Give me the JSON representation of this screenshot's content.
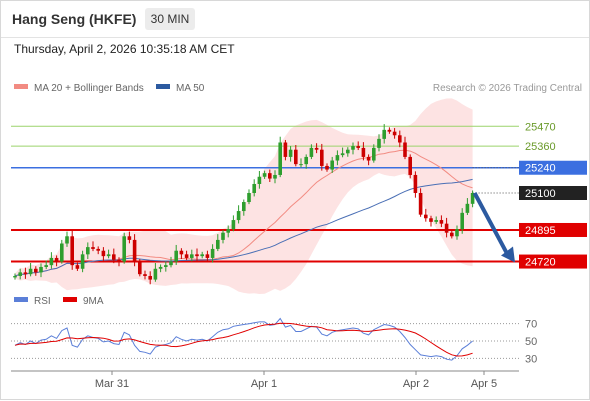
{
  "header": {
    "title": "Hang Seng (HKFE)",
    "interval": "30 MIN",
    "timestamp": "Thursday, April 2, 2026 10:35:18 AM CET"
  },
  "legend": {
    "ma20": {
      "label": "MA 20 + Bollinger Bands",
      "color": "#f28b82"
    },
    "ma50": {
      "label": "MA 50",
      "color": "#2c5aa0"
    },
    "rsi": {
      "label": "RSI",
      "color": "#5b7fd8"
    },
    "rsi_ma": {
      "label": "9MA",
      "color": "#e00000"
    }
  },
  "copyright": "Research © 2026 Trading Central",
  "colors": {
    "up": "#2e9e2e",
    "down": "#cc0000",
    "band": "#fde3e3",
    "arrow": "#2c5aa0",
    "resistance": "#9bd36b",
    "support": "#e00000",
    "pivot": "#3b6fe0"
  },
  "chart_data": [
    {
      "type": "candlestick",
      "ylim": [
        24590,
        25610
      ],
      "x_ticks": [
        "Mar 31",
        "Apr 1",
        "Apr 2",
        "Apr 5"
      ],
      "levels": [
        {
          "label": "25470",
          "value": 25470,
          "kind": "resistance"
        },
        {
          "label": "25360",
          "value": 25360,
          "kind": "resistance"
        },
        {
          "label": "25240",
          "value": 25240,
          "kind": "pivot"
        },
        {
          "label": "25100",
          "value": 25100,
          "kind": "last"
        },
        {
          "label": "24895",
          "value": 24895,
          "kind": "support"
        },
        {
          "label": "24720",
          "value": 24720,
          "kind": "support"
        }
      ],
      "forecast": {
        "from": 25100,
        "to": 24720
      },
      "closes": [
        24640,
        24660,
        24650,
        24680,
        24660,
        24690,
        24700,
        24740,
        24720,
        24820,
        24860,
        24700,
        24680,
        24760,
        24800,
        24790,
        24780,
        24750,
        24760,
        24730,
        24720,
        24860,
        24840,
        24720,
        24650,
        24640,
        24620,
        24680,
        24690,
        24700,
        24720,
        24780,
        24760,
        24740,
        24760,
        24750,
        24760,
        24740,
        24790,
        24840,
        24880,
        24900,
        24950,
        25000,
        25050,
        25100,
        25150,
        25190,
        25210,
        25180,
        25200,
        25380,
        25300,
        25340,
        25260,
        25260,
        25300,
        25350,
        25340,
        25250,
        25230,
        25280,
        25310,
        25320,
        25340,
        25360,
        25350,
        25300,
        25280,
        25350,
        25400,
        25450,
        25440,
        25420,
        25380,
        25300,
        25200,
        25100,
        24980,
        24960,
        24940,
        24950,
        24930,
        24880,
        24860,
        24900,
        24990,
        25040,
        25100
      ]
    },
    {
      "type": "line",
      "name": "RSI",
      "ylim": [
        20,
        80
      ],
      "y_ticks": [
        70,
        50,
        30
      ],
      "x_ticks": [
        "Mar 31",
        "Apr 1",
        "Apr 2",
        "Apr 5"
      ],
      "rsi": [
        45,
        48,
        46,
        50,
        47,
        51,
        52,
        56,
        53,
        62,
        65,
        45,
        43,
        52,
        56,
        54,
        53,
        49,
        50,
        47,
        46,
        60,
        57,
        45,
        38,
        37,
        35,
        43,
        45,
        46,
        48,
        55,
        52,
        50,
        52,
        51,
        52,
        50,
        55,
        60,
        63,
        64,
        67,
        68,
        69,
        70,
        71,
        72,
        72,
        68,
        69,
        76,
        66,
        68,
        61,
        61,
        64,
        67,
        66,
        58,
        56,
        60,
        62,
        63,
        64,
        65,
        64,
        59,
        57,
        63,
        66,
        69,
        68,
        66,
        61,
        54,
        46,
        40,
        34,
        33,
        32,
        33,
        32,
        29,
        28,
        33,
        41,
        45,
        50
      ]
    }
  ]
}
